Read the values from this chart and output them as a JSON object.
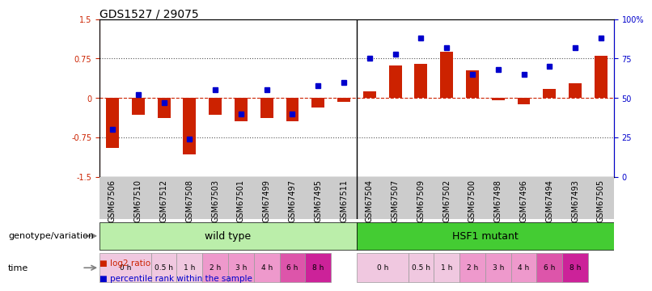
{
  "title": "GDS1527 / 29075",
  "samples": [
    "GSM67506",
    "GSM67510",
    "GSM67512",
    "GSM67508",
    "GSM67503",
    "GSM67501",
    "GSM67499",
    "GSM67497",
    "GSM67495",
    "GSM67511",
    "GSM67504",
    "GSM67507",
    "GSM67509",
    "GSM67502",
    "GSM67500",
    "GSM67498",
    "GSM67496",
    "GSM67494",
    "GSM67493",
    "GSM67505"
  ],
  "log2_ratio": [
    -0.95,
    -0.32,
    -0.38,
    -1.08,
    -0.32,
    -0.45,
    -0.38,
    -0.45,
    -0.18,
    -0.08,
    0.12,
    0.62,
    0.65,
    0.88,
    0.52,
    -0.05,
    -0.12,
    0.18,
    0.28,
    0.8
  ],
  "percentile_rank": [
    30,
    52,
    47,
    24,
    55,
    40,
    55,
    40,
    58,
    60,
    75,
    78,
    88,
    82,
    65,
    68,
    65,
    70,
    82,
    88
  ],
  "ylim_left": [
    -1.5,
    1.5
  ],
  "ylim_right": [
    0,
    100
  ],
  "yticks_left": [
    -1.5,
    -0.75,
    0,
    0.75,
    1.5
  ],
  "ytick_labels_left": [
    "-1.5",
    "-0.75",
    "0",
    "0.75",
    "1.5"
  ],
  "yticks_right": [
    0,
    25,
    50,
    75,
    100
  ],
  "ytick_labels_right": [
    "0",
    "25",
    "50",
    "75",
    "100%"
  ],
  "bar_color": "#CC2200",
  "scatter_color": "#0000CC",
  "zero_line_color": "#CC2200",
  "dotted_line_color": "#555555",
  "bg_color": "#FFFFFF",
  "plot_bg": "#FFFFFF",
  "genotype_wt_label": "wild type",
  "genotype_mut_label": "HSF1 mutant",
  "wt_color": "#BBEEAA",
  "mut_color": "#44CC33",
  "xlabel_genotype": "genotype/variation",
  "xlabel_time": "time",
  "legend_bar_label": "log2 ratio",
  "legend_scatter_label": "percentile rank within the sample",
  "title_fontsize": 10,
  "tick_fontsize": 7,
  "label_fontsize": 8,
  "wt_time": [
    {
      "label": "0 h",
      "start": 0,
      "end": 2,
      "color": "#F0C8E0"
    },
    {
      "label": "0.5 h",
      "start": 2,
      "end": 3,
      "color": "#F0C8E0"
    },
    {
      "label": "1 h",
      "start": 3,
      "end": 4,
      "color": "#F0C8E0"
    },
    {
      "label": "2 h",
      "start": 4,
      "end": 5,
      "color": "#EE99CC"
    },
    {
      "label": "3 h",
      "start": 5,
      "end": 6,
      "color": "#EE99CC"
    },
    {
      "label": "4 h",
      "start": 6,
      "end": 7,
      "color": "#EE99CC"
    },
    {
      "label": "6 h",
      "start": 7,
      "end": 8,
      "color": "#DD55AA"
    },
    {
      "label": "8 h",
      "start": 8,
      "end": 9,
      "color": "#CC2299"
    }
  ],
  "mut_time": [
    {
      "label": "0 h",
      "start": 10,
      "end": 12,
      "color": "#F0C8E0"
    },
    {
      "label": "0.5 h",
      "start": 12,
      "end": 13,
      "color": "#F0C8E0"
    },
    {
      "label": "1 h",
      "start": 13,
      "end": 14,
      "color": "#F0C8E0"
    },
    {
      "label": "2 h",
      "start": 14,
      "end": 15,
      "color": "#EE99CC"
    },
    {
      "label": "3 h",
      "start": 15,
      "end": 16,
      "color": "#EE99CC"
    },
    {
      "label": "4 h",
      "start": 16,
      "end": 17,
      "color": "#EE99CC"
    },
    {
      "label": "6 h",
      "start": 17,
      "end": 18,
      "color": "#DD55AA"
    },
    {
      "label": "8 h",
      "start": 18,
      "end": 19,
      "color": "#CC2299"
    }
  ]
}
